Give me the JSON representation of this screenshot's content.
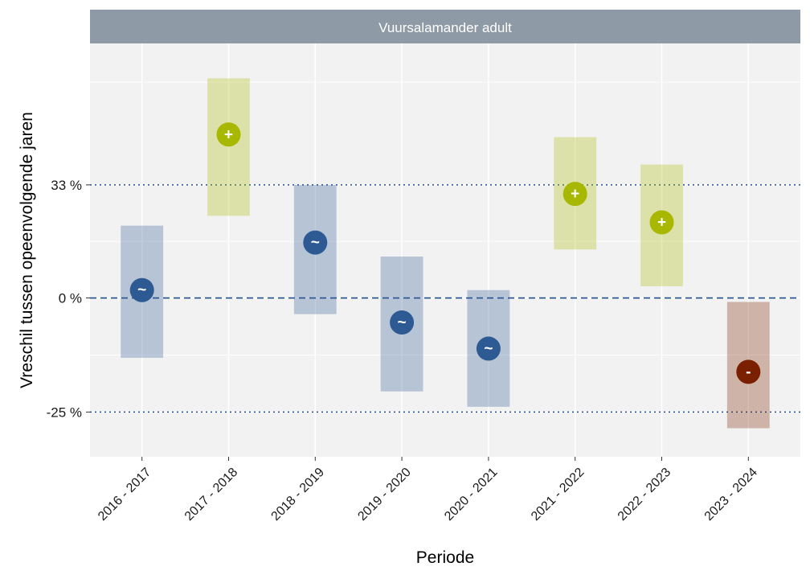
{
  "colors": {
    "panel_bg": "#f2f2f2",
    "strip_bg": "#8e9aa5",
    "grid": "#ffffff",
    "reference_line": "#1f4e8c",
    "stable": "#2e5a94",
    "increase": "#a8b800",
    "decrease": "#7a2000"
  },
  "chart_data": {
    "type": "errorbar",
    "panel_title": "Vuursalamander adult",
    "xlabel": "Periode",
    "ylabel": "Vreschil tussen opeenvolgende jaren",
    "y_scale": "log (ratio)",
    "ylim_percent": [
      -33,
      90
    ],
    "y_ticks": [
      {
        "value": -25,
        "label": "-25 %"
      },
      {
        "value": 0,
        "label": "0 %"
      },
      {
        "value": 33,
        "label": "33 %"
      }
    ],
    "reference_lines": [
      {
        "value": 0,
        "style": "dashed"
      },
      {
        "value": -25,
        "style": "dotted"
      },
      {
        "value": 33,
        "style": "dotted"
      }
    ],
    "categories": [
      "2016 - 2017",
      "2017 - 2018",
      "2018 - 2019",
      "2019 - 2020",
      "2020 - 2021",
      "2021 - 2022",
      "2022 - 2023",
      "2023 - 2024"
    ],
    "estimate_percent": [
      2,
      51,
      15,
      -6,
      -12,
      30,
      21,
      -17
    ],
    "lower_percent": [
      -14,
      23,
      -4,
      -21,
      -24,
      13,
      3,
      -28
    ],
    "upper_percent": [
      20,
      74,
      33,
      11,
      2,
      50,
      40,
      -1
    ],
    "classification": [
      "stable",
      "increase",
      "stable",
      "stable",
      "stable",
      "increase",
      "increase",
      "decrease"
    ],
    "symbols": [
      "~",
      "+",
      "~",
      "~",
      "~",
      "+",
      "+",
      "-"
    ]
  }
}
